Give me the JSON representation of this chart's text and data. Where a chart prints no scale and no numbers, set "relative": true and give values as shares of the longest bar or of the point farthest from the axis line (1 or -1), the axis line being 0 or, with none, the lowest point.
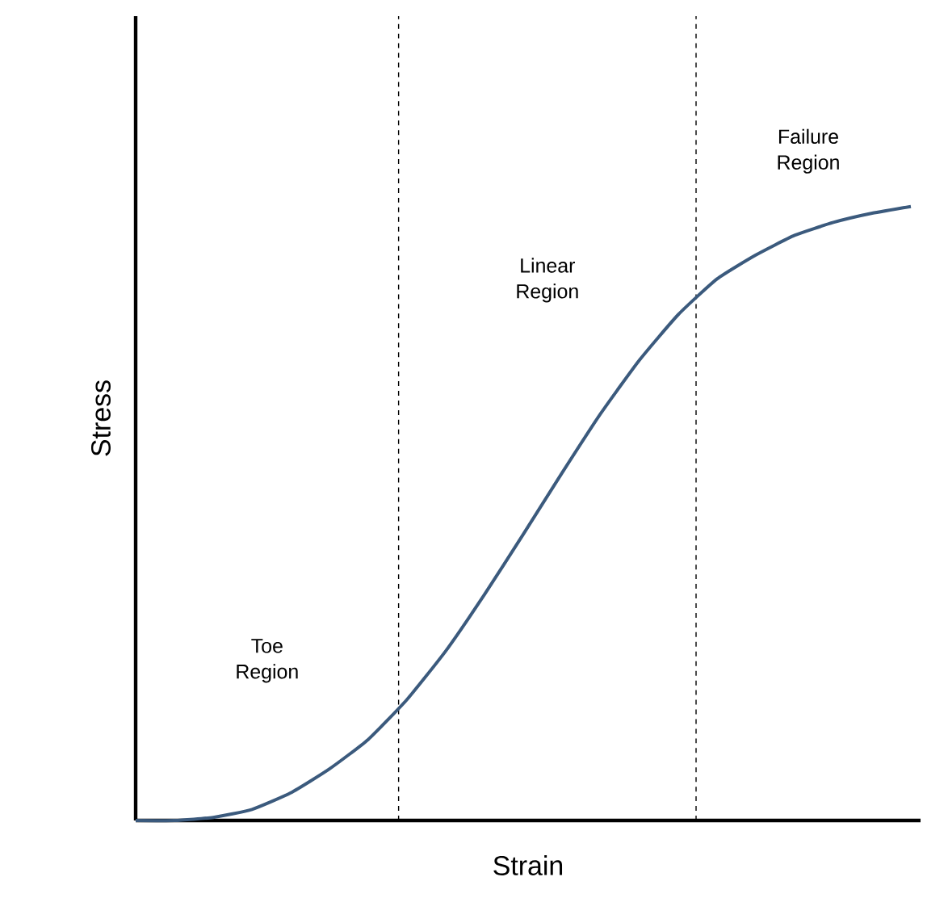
{
  "chart_data": {
    "type": "line",
    "relative": true,
    "xlabel": "Strain",
    "ylabel": "Stress",
    "color": "#3b5a7d",
    "categories": [
      null,
      null,
      null,
      null,
      null,
      null,
      null,
      null,
      null,
      null,
      null,
      null,
      null,
      null,
      null,
      null,
      null,
      null,
      null,
      null,
      null
    ],
    "values": [
      0,
      0,
      0.005,
      0.018,
      0.045,
      0.084,
      0.132,
      0.197,
      0.276,
      0.368,
      0.466,
      0.566,
      0.663,
      0.75,
      0.824,
      0.882,
      0.921,
      0.953,
      0.974,
      0.989,
      1
    ],
    "annotations": [
      "Toe Region",
      "Linear Region",
      "Failure Region"
    ]
  }
}
